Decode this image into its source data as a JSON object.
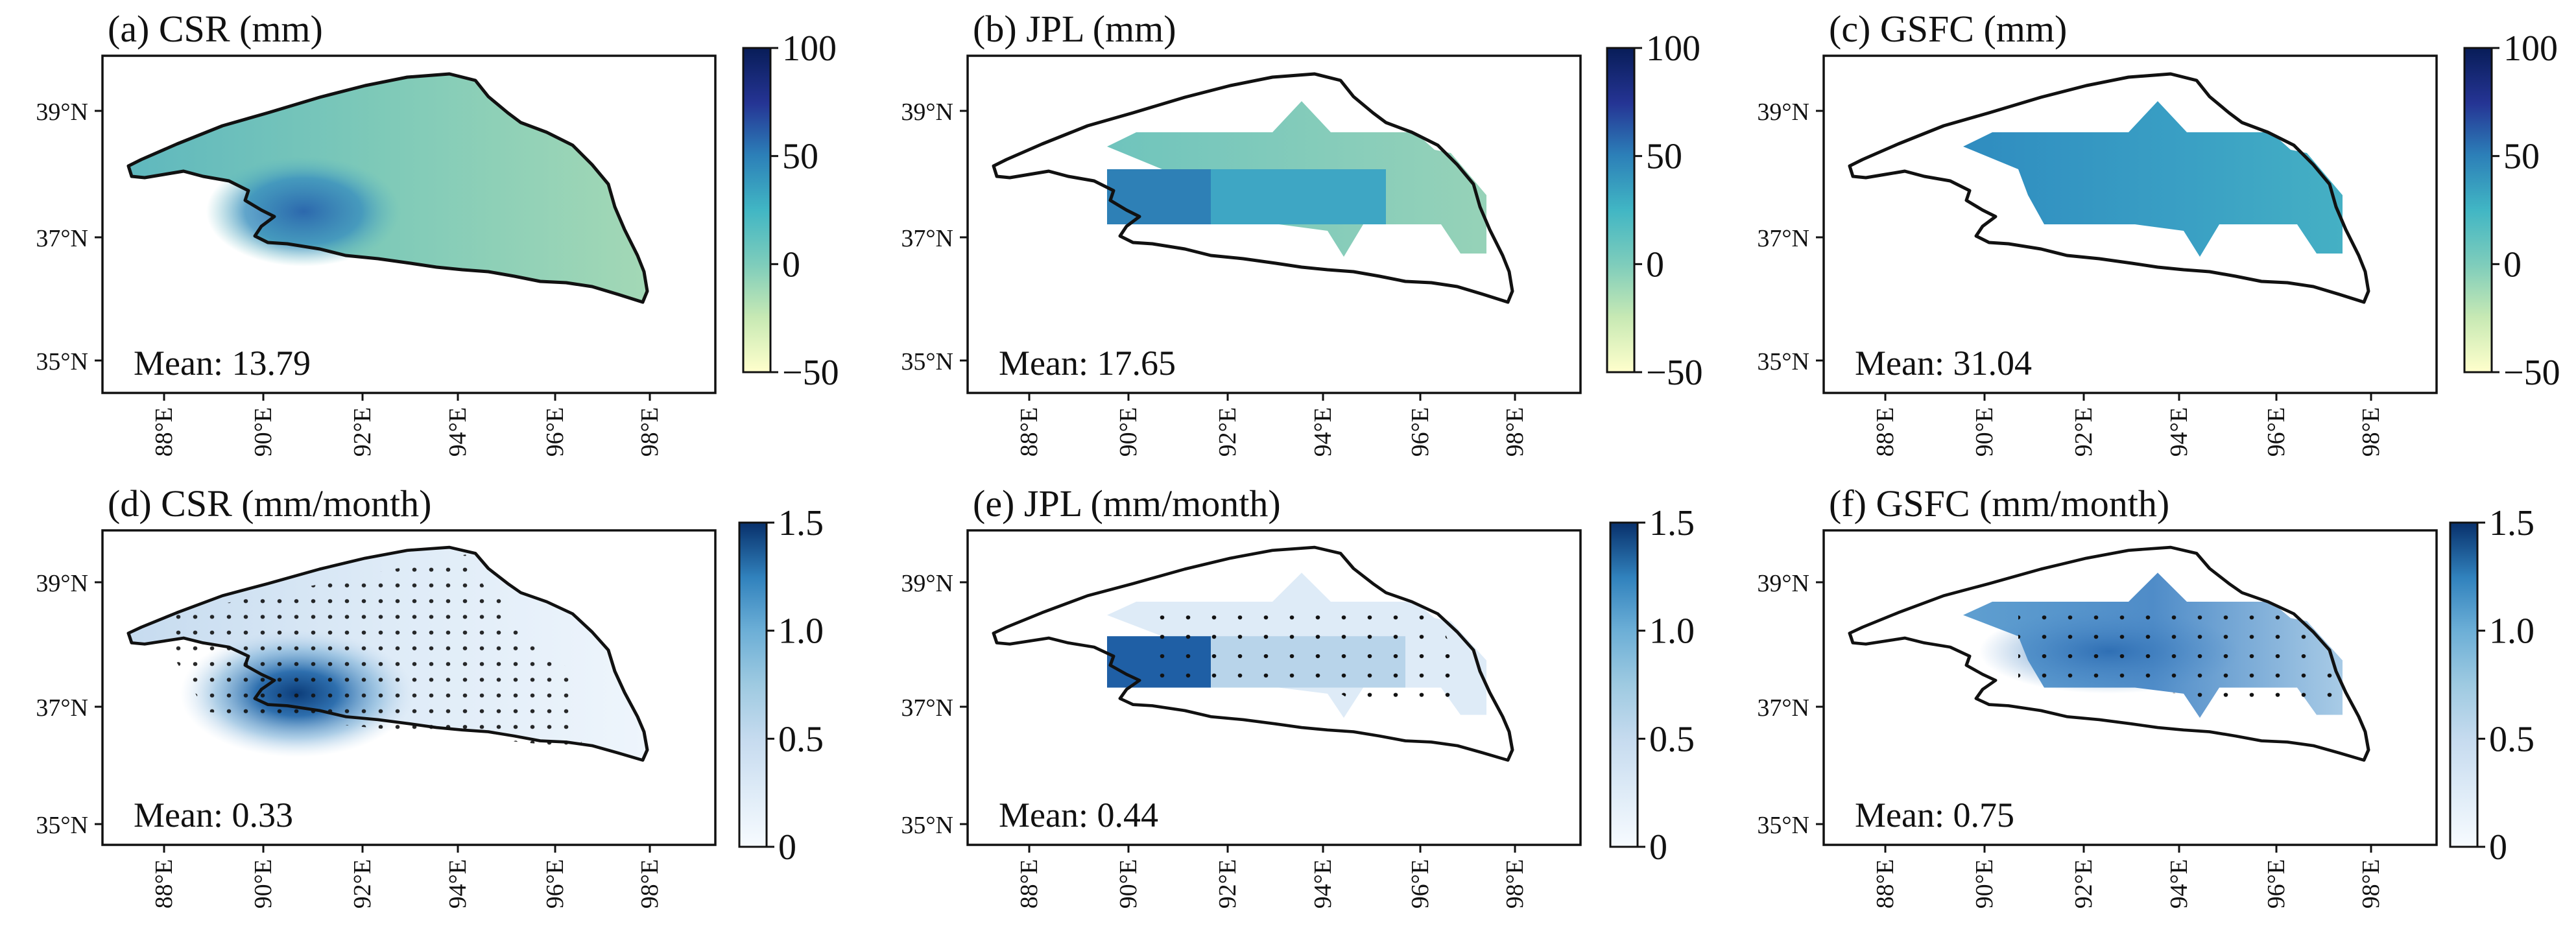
{
  "figure": {
    "colormap_mean": [
      "#ffffcc",
      "#c7e9b4",
      "#7fcdbb",
      "#41b6c4",
      "#2c7fb8",
      "#253494",
      "#081d58"
    ],
    "colormap_trend": [
      "#f7fbff",
      "#deebf7",
      "#c6dbef",
      "#9ecae1",
      "#6baed6",
      "#3182bd",
      "#08306b"
    ],
    "outline_color": "#111111"
  },
  "panels": [
    {
      "id": "a",
      "title": "(a) CSR (mm)",
      "mean_label": "Mean: 13.79",
      "mean_value": 13.79,
      "colorbar_ticks": [
        "100",
        "50",
        "0",
        "−50"
      ],
      "colorbar_range": [
        -50,
        100
      ],
      "lat_ticks": [
        "39°N",
        "37°N",
        "35°N"
      ],
      "lon_ticks": [
        "88°E",
        "90°E",
        "92°E",
        "94°E",
        "96°E",
        "98°E"
      ]
    },
    {
      "id": "b",
      "title": "(b) JPL (mm)",
      "mean_label": "Mean: 17.65",
      "mean_value": 17.65,
      "colorbar_ticks": [
        "100",
        "50",
        "0",
        "−50"
      ],
      "colorbar_range": [
        -50,
        100
      ],
      "lat_ticks": [
        "39°N",
        "37°N",
        "35°N"
      ],
      "lon_ticks": [
        "88°E",
        "90°E",
        "92°E",
        "94°E",
        "96°E",
        "98°E"
      ]
    },
    {
      "id": "c",
      "title": "(c) GSFC (mm)",
      "mean_label": "Mean: 31.04",
      "mean_value": 31.04,
      "colorbar_ticks": [
        "100",
        "50",
        "0",
        "−50"
      ],
      "colorbar_range": [
        -50,
        100
      ],
      "lat_ticks": [
        "39°N",
        "37°N",
        "35°N"
      ],
      "lon_ticks": [
        "88°E",
        "90°E",
        "92°E",
        "94°E",
        "96°E",
        "98°E"
      ]
    },
    {
      "id": "d",
      "title": "(d) CSR (mm/month)",
      "mean_label": "Mean: 0.33",
      "mean_value": 0.33,
      "colorbar_ticks": [
        "1.5",
        "1.0",
        "0.5",
        "0"
      ],
      "colorbar_range": [
        0,
        1.5
      ],
      "lat_ticks": [
        "39°N",
        "37°N",
        "35°N"
      ],
      "lon_ticks": [
        "88°E",
        "90°E",
        "92°E",
        "94°E",
        "96°E",
        "98°E"
      ]
    },
    {
      "id": "e",
      "title": "(e) JPL (mm/month)",
      "mean_label": "Mean: 0.44",
      "mean_value": 0.44,
      "colorbar_ticks": [
        "1.5",
        "1.0",
        "0.5",
        "0"
      ],
      "colorbar_range": [
        0,
        1.5
      ],
      "lat_ticks": [
        "39°N",
        "37°N",
        "35°N"
      ],
      "lon_ticks": [
        "88°E",
        "90°E",
        "92°E",
        "94°E",
        "96°E",
        "98°E"
      ]
    },
    {
      "id": "f",
      "title": "(f) GSFC (mm/month)",
      "mean_label": "Mean: 0.75",
      "mean_value": 0.75,
      "colorbar_ticks": [
        "1.5",
        "1.0",
        "0.5",
        "0"
      ],
      "colorbar_range": [
        0,
        1.5
      ],
      "lat_ticks": [
        "39°N",
        "37°N",
        "35°N"
      ],
      "lon_ticks": [
        "88°E",
        "90°E",
        "92°E",
        "94°E",
        "96°E",
        "98°E"
      ]
    }
  ]
}
